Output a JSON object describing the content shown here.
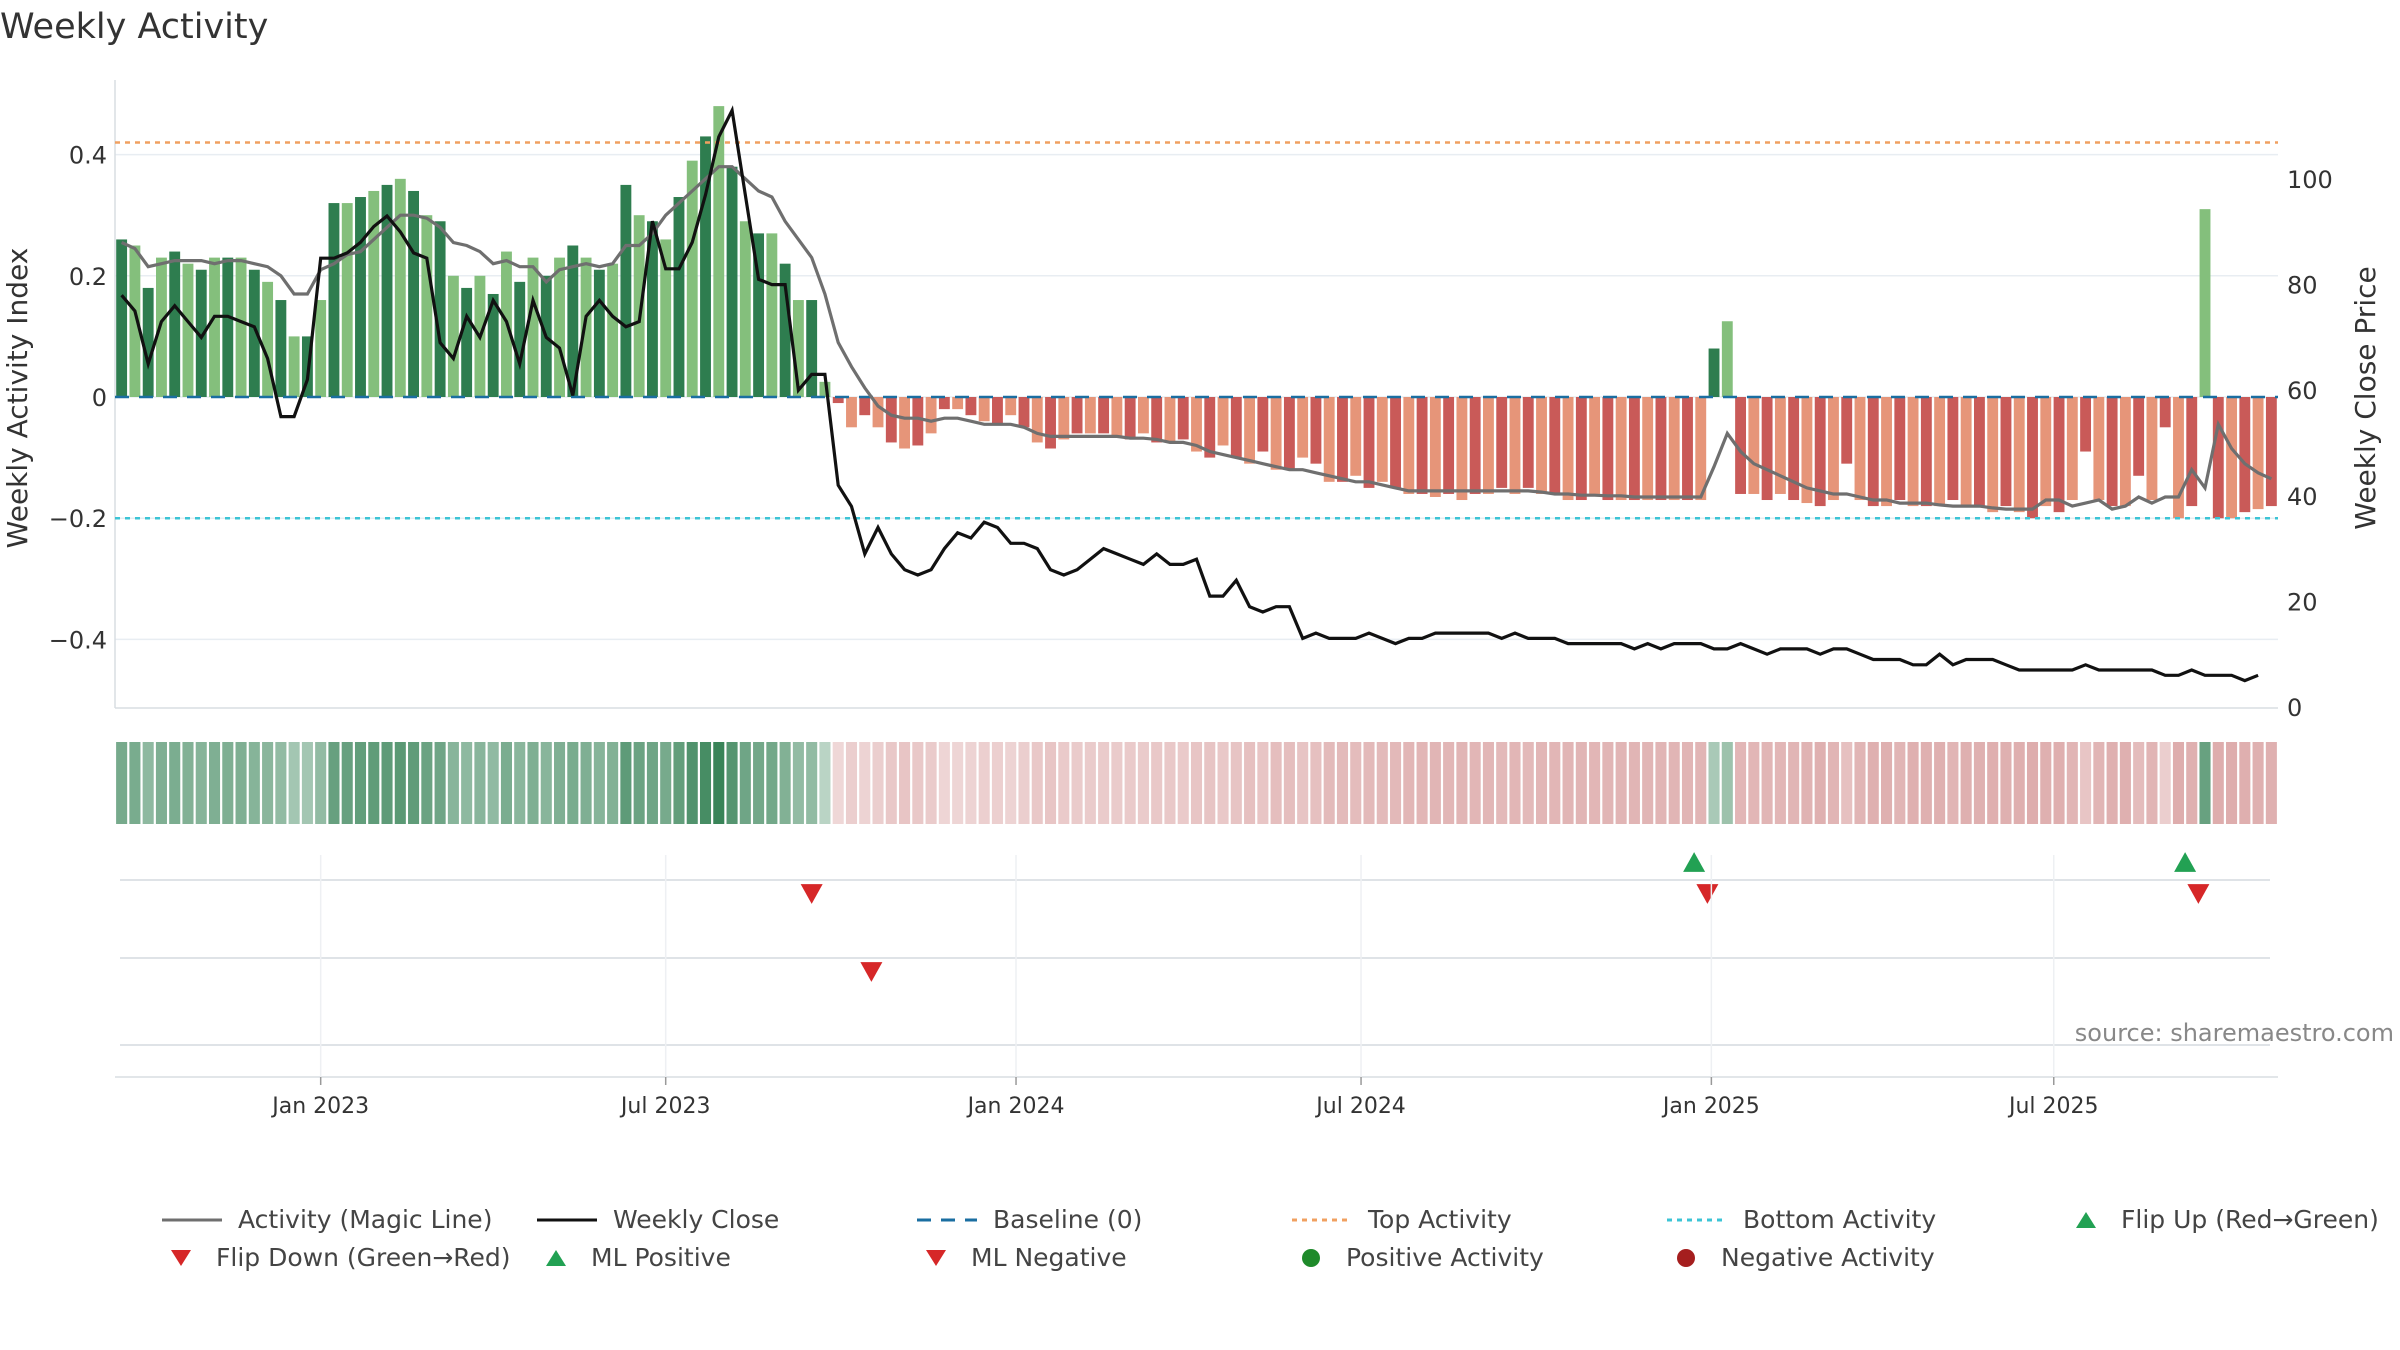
{
  "chart_data": {
    "type": "bar",
    "title": "Weekly Activity",
    "ylabel": "Weekly Activity Index",
    "y2label": "Weekly Close Price",
    "source": "source: sharemaestro.com",
    "ylim": [
      -0.52,
      0.52
    ],
    "y2lim": [
      0,
      118
    ],
    "yticks": [
      0.4,
      0.2,
      0,
      -0.2,
      -0.4
    ],
    "ytick_labels": [
      "0.4",
      "0.2",
      "0",
      "−0.2",
      "−0.4"
    ],
    "y2ticks": [
      0,
      20,
      40,
      60,
      80,
      100
    ],
    "y2tick_labels": [
      "0",
      "20",
      "40",
      "60",
      "80",
      "100"
    ],
    "xticks": [
      {
        "label": "Jan 2023",
        "week": 17
      },
      {
        "label": "Jul 2023",
        "week": 43
      },
      {
        "label": "Jan 2024",
        "week": 69.4
      },
      {
        "label": "Jul 2024",
        "week": 95.4
      },
      {
        "label": "Jan 2025",
        "week": 121.8
      },
      {
        "label": "Jul 2025",
        "week": 147.6
      }
    ],
    "top_activity": 0.42,
    "bottom_activity": -0.2,
    "baseline": 0,
    "start_week": 2,
    "activity": [
      0.26,
      0.25,
      0.18,
      0.23,
      0.24,
      0.22,
      0.21,
      0.23,
      0.23,
      0.23,
      0.21,
      0.19,
      0.16,
      0.1,
      0.1,
      0.16,
      0.32,
      0.32,
      0.33,
      0.34,
      0.35,
      0.36,
      0.34,
      0.3,
      0.29,
      0.2,
      0.18,
      0.2,
      0.17,
      0.24,
      0.19,
      0.23,
      0.2,
      0.23,
      0.25,
      0.23,
      0.21,
      0.22,
      0.35,
      0.3,
      0.29,
      0.26,
      0.33,
      0.39,
      0.43,
      0.48,
      0.38,
      0.29,
      0.27,
      0.27,
      0.22,
      0.16,
      0.16,
      0.025,
      -0.01,
      -0.05,
      -0.03,
      -0.05,
      -0.075,
      -0.085,
      -0.08,
      -0.06,
      -0.02,
      -0.02,
      -0.03,
      -0.04,
      -0.045,
      -0.03,
      -0.05,
      -0.075,
      -0.085,
      -0.07,
      -0.06,
      -0.06,
      -0.06,
      -0.065,
      -0.07,
      -0.06,
      -0.075,
      -0.075,
      -0.07,
      -0.09,
      -0.1,
      -0.08,
      -0.1,
      -0.11,
      -0.09,
      -0.12,
      -0.12,
      -0.1,
      -0.11,
      -0.14,
      -0.14,
      -0.13,
      -0.15,
      -0.14,
      -0.15,
      -0.16,
      -0.16,
      -0.165,
      -0.16,
      -0.17,
      -0.16,
      -0.16,
      -0.15,
      -0.16,
      -0.15,
      -0.16,
      -0.16,
      -0.17,
      -0.17,
      -0.16,
      -0.17,
      -0.17,
      -0.17,
      -0.17,
      -0.17,
      -0.17,
      -0.17,
      -0.17,
      0.08,
      0.125,
      -0.16,
      -0.16,
      -0.17,
      -0.16,
      -0.17,
      -0.175,
      -0.18,
      -0.17,
      -0.11,
      -0.17,
      -0.18,
      -0.18,
      -0.17,
      -0.18,
      -0.18,
      -0.18,
      -0.17,
      -0.18,
      -0.18,
      -0.19,
      -0.18,
      -0.19,
      -0.2,
      -0.18,
      -0.19,
      -0.17,
      -0.09,
      -0.17,
      -0.18,
      -0.18,
      -0.13,
      -0.17,
      -0.05,
      -0.2,
      -0.18,
      0.31,
      -0.2,
      -0.2,
      -0.19,
      -0.185,
      -0.18
    ],
    "magic_line": [
      0.255,
      0.245,
      0.215,
      0.22,
      0.225,
      0.225,
      0.225,
      0.22,
      0.225,
      0.225,
      0.22,
      0.215,
      0.2,
      0.17,
      0.17,
      0.21,
      0.22,
      0.235,
      0.24,
      0.26,
      0.28,
      0.3,
      0.3,
      0.295,
      0.28,
      0.255,
      0.25,
      0.24,
      0.22,
      0.225,
      0.215,
      0.215,
      0.19,
      0.21,
      0.215,
      0.22,
      0.215,
      0.22,
      0.25,
      0.25,
      0.27,
      0.3,
      0.32,
      0.34,
      0.36,
      0.38,
      0.38,
      0.36,
      0.34,
      0.33,
      0.29,
      0.26,
      0.23,
      0.17,
      0.09,
      0.05,
      0.015,
      -0.015,
      -0.03,
      -0.035,
      -0.035,
      -0.04,
      -0.035,
      -0.035,
      -0.04,
      -0.045,
      -0.045,
      -0.045,
      -0.05,
      -0.06,
      -0.065,
      -0.065,
      -0.065,
      -0.065,
      -0.065,
      -0.065,
      -0.068,
      -0.068,
      -0.07,
      -0.075,
      -0.075,
      -0.08,
      -0.09,
      -0.095,
      -0.1,
      -0.105,
      -0.11,
      -0.115,
      -0.12,
      -0.12,
      -0.125,
      -0.13,
      -0.135,
      -0.14,
      -0.14,
      -0.145,
      -0.15,
      -0.155,
      -0.155,
      -0.155,
      -0.155,
      -0.155,
      -0.155,
      -0.155,
      -0.155,
      -0.155,
      -0.155,
      -0.157,
      -0.16,
      -0.16,
      -0.162,
      -0.162,
      -0.163,
      -0.163,
      -0.165,
      -0.165,
      -0.165,
      -0.165,
      -0.165,
      -0.165,
      -0.115,
      -0.06,
      -0.09,
      -0.11,
      -0.12,
      -0.13,
      -0.14,
      -0.15,
      -0.155,
      -0.16,
      -0.16,
      -0.165,
      -0.17,
      -0.17,
      -0.175,
      -0.175,
      -0.175,
      -0.178,
      -0.18,
      -0.18,
      -0.18,
      -0.183,
      -0.185,
      -0.185,
      -0.185,
      -0.17,
      -0.17,
      -0.18,
      -0.175,
      -0.17,
      -0.185,
      -0.18,
      -0.165,
      -0.175,
      -0.165,
      -0.165,
      -0.12,
      -0.15,
      -0.045,
      -0.085,
      -0.11,
      -0.125,
      -0.135
    ],
    "weekly_close": [
      78,
      75,
      65,
      73,
      76,
      73,
      70,
      74,
      74,
      73,
      72,
      66,
      55,
      55,
      62,
      85,
      85,
      86,
      88,
      91,
      93,
      90,
      86,
      85,
      69,
      66,
      74,
      70,
      77,
      73,
      65,
      77,
      70,
      68,
      59,
      74,
      77,
      74,
      72,
      73,
      92,
      83,
      83,
      88,
      97,
      108,
      113,
      97,
      81,
      80,
      80,
      60,
      63,
      63,
      42,
      38,
      29,
      34,
      29,
      26,
      25,
      26,
      30,
      33,
      32,
      35,
      34,
      31,
      31,
      30,
      26,
      25,
      26,
      28,
      30,
      29,
      28,
      27,
      29,
      27,
      27,
      28,
      21,
      21,
      24,
      19,
      18,
      19,
      19,
      13,
      14,
      13,
      13,
      13,
      14,
      13,
      12,
      13,
      13,
      14,
      14,
      14,
      14,
      14,
      13,
      14,
      13,
      13,
      13,
      12,
      12,
      12,
      12,
      12,
      11,
      12,
      11,
      12,
      12,
      12,
      11,
      11,
      12,
      11,
      10,
      11,
      11,
      11,
      10,
      11,
      11,
      10,
      9,
      9,
      9,
      8,
      8,
      10,
      8,
      9,
      9,
      9,
      8,
      7,
      7,
      7,
      7,
      7,
      8,
      7,
      7,
      7,
      7,
      7,
      6,
      6,
      7,
      6,
      6,
      6,
      5,
      6
    ],
    "flip_up": [
      120.5,
      157.5
    ],
    "flip_down": [
      54,
      121.5,
      158.5
    ],
    "ml_negative": [
      58.5
    ],
    "strip_color": "#b24040",
    "colors": {
      "positive_dark": "#2e7d4f",
      "positive_light": "#84bf7c",
      "negative_dark": "#c95a58",
      "negative_light": "#e69579",
      "magic_line": "#6f6f6f",
      "weekly_close": "#111111",
      "baseline": "#1a6ea1",
      "top_activity": "#f0a060",
      "bottom_activity": "#3cc4d6",
      "flip_up": "#22a153",
      "flip_down": "#d62728"
    }
  },
  "legend": [
    {
      "label": "Activity (Magic Line)",
      "icon": "line-solid-gray"
    },
    {
      "label": "Weekly Close",
      "icon": "line-solid-black"
    },
    {
      "label": "Baseline (0)",
      "icon": "line-dashed-blue"
    },
    {
      "label": "Top Activity",
      "icon": "line-dotted-orange"
    },
    {
      "label": "Bottom Activity",
      "icon": "line-dotted-cyan"
    },
    {
      "label": "Flip Up (Red→Green)",
      "icon": "triangle-up-green"
    },
    {
      "label": "Flip Down (Green→Red)",
      "icon": "triangle-down-red"
    },
    {
      "label": "ML Positive",
      "icon": "triangle-up-green"
    },
    {
      "label": "ML Negative",
      "icon": "triangle-down-red"
    },
    {
      "label": "Positive Activity",
      "icon": "circle-green"
    },
    {
      "label": "Negative Activity",
      "icon": "circle-red"
    }
  ]
}
